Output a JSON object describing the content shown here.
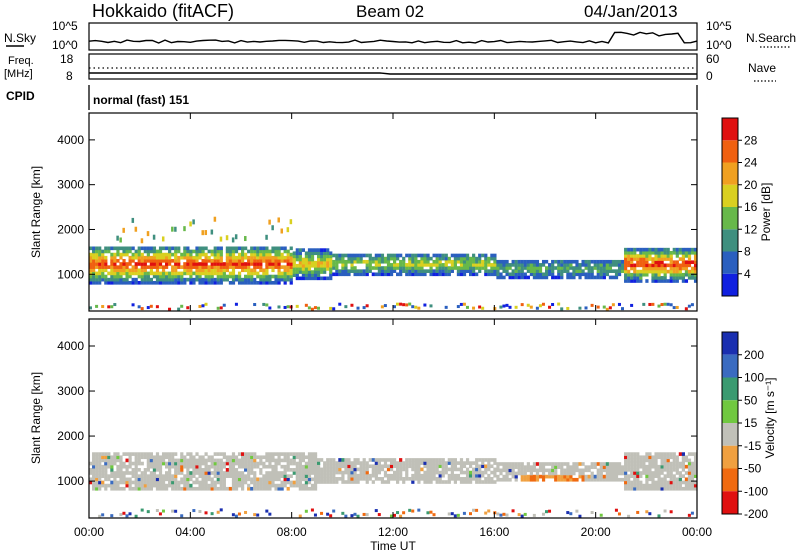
{
  "header": {
    "station": "Hokkaido (fitACF)",
    "beam": "Beam 02",
    "date": "04/Jan/2013"
  },
  "status_rows": {
    "nsky_label": "N.Sky",
    "nsky_ticks": [
      "10^5",
      "10^0"
    ],
    "nsearch_label": "N.Search",
    "nsearch_ticks": [
      "10^5",
      "10^0"
    ],
    "freq_label": "Freq.",
    "freq_unit": "[MHz]",
    "freq_ticks": [
      "18",
      "8"
    ],
    "nave_label": "Nave",
    "nave_ticks": [
      "60",
      "0"
    ],
    "cpid_label": "CPID",
    "cpid_value": "normal (fast) 151"
  },
  "chart_data": [
    {
      "type": "heatmap",
      "name": "power-panel",
      "ylabel": "Slant Range [km]",
      "y_ticks": [
        "1000",
        "2000",
        "3000",
        "4000"
      ],
      "ylim": [
        180,
        4600
      ],
      "x_ticks": [
        "00:00",
        "04:00",
        "08:00",
        "12:00",
        "16:00",
        "20:00",
        "00:00"
      ],
      "xlim_hours": [
        0,
        24
      ],
      "colorbar": {
        "label": "Power [dB]",
        "ticks": [
          "4",
          "8",
          "12",
          "16",
          "20",
          "24",
          "28"
        ],
        "range": [
          0,
          30
        ],
        "colors": [
          "#1020e0",
          "#2a5fbf",
          "#3f8f7f",
          "#67b84a",
          "#d9d020",
          "#f0a020",
          "#f06010",
          "#e01010"
        ]
      }
    },
    {
      "type": "heatmap",
      "name": "velocity-panel",
      "ylabel": "Slant Range [km]",
      "y_ticks": [
        "1000",
        "2000",
        "3000",
        "4000"
      ],
      "ylim": [
        180,
        4600
      ],
      "x_ticks": [
        "00:00",
        "04:00",
        "08:00",
        "12:00",
        "16:00",
        "20:00",
        "00:00"
      ],
      "xlim_hours": [
        0,
        24
      ],
      "xlabel": "Time UT",
      "colorbar": {
        "label": "Velocity [m s⁻¹]",
        "ticks": [
          "200",
          "100",
          "50",
          "15",
          "-15",
          "-50",
          "-100",
          "-200"
        ],
        "colors": [
          "#1a2fb0",
          "#3a6bc0",
          "#3a9a70",
          "#70c840",
          "#c0c0b8",
          "#f0a040",
          "#f06a10",
          "#e01010"
        ]
      }
    }
  ]
}
